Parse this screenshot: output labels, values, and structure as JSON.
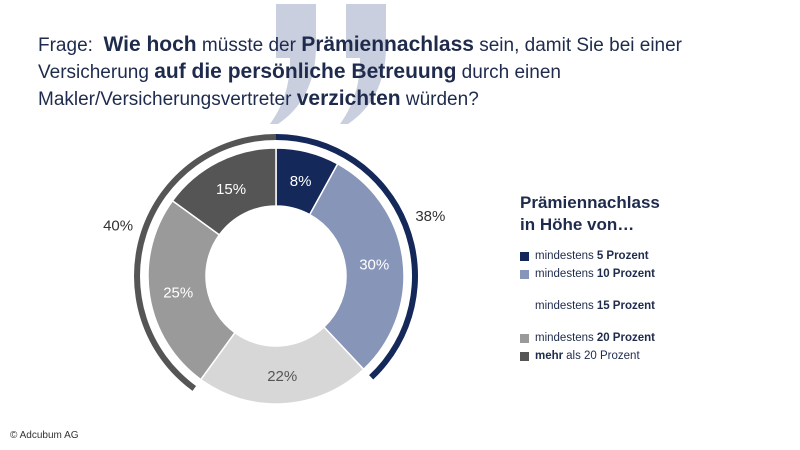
{
  "question": {
    "label": "Frage:",
    "parts": [
      {
        "text": "Wie hoch",
        "bold": true
      },
      {
        "text": " müsste der ",
        "bold": false
      },
      {
        "text": "Prämiennachlass",
        "bold": true
      },
      {
        "text": " sein, damit Sie bei einer Versicherung ",
        "bold": false
      },
      {
        "text": "auf die persönliche Betreuung",
        "bold": true
      },
      {
        "text": " durch einen Makler/Versicherungsvertreter ",
        "bold": false
      },
      {
        "text": "verzichten",
        "bold": true
      },
      {
        "text": " würden?",
        "bold": false
      }
    ]
  },
  "legend": {
    "title_line1": "Prämiennachlass",
    "title_line2": "in Höhe von…",
    "items": [
      {
        "prefix": "mindestens",
        "value": "5 Prozent"
      },
      {
        "prefix": "mindestens",
        "value": "10 Prozent"
      },
      {
        "prefix": "mindestens",
        "value": "15 Prozent"
      },
      {
        "prefix": "mindestens",
        "value": "20 Prozent"
      },
      {
        "prefix": "mehr",
        "value": "als 20 Prozent"
      }
    ]
  },
  "copyright": "© Adcubum AG",
  "colors": {
    "navy": "#15285a",
    "blue_gray": "#8795b8",
    "light_gray": "#d7d7d7",
    "mid_gray": "#9a9a9a",
    "dark_gray": "#555555",
    "quote": "#c9cfdf"
  },
  "chart_data": {
    "type": "pie",
    "variant": "donut",
    "categories": [
      "mindestens 5 Prozent",
      "mindestens 10 Prozent",
      "mindestens 15 Prozent",
      "mindestens 20 Prozent",
      "mehr als 20 Prozent"
    ],
    "values": [
      8,
      30,
      22,
      25,
      15
    ],
    "labels": [
      "8%",
      "30%",
      "22%",
      "25%",
      "15%"
    ],
    "groups": [
      {
        "label": "38%",
        "value": 38,
        "members": [
          0,
          1
        ]
      },
      {
        "label": "40%",
        "value": 40,
        "members": [
          3,
          4
        ]
      }
    ],
    "legend_position": "right"
  }
}
